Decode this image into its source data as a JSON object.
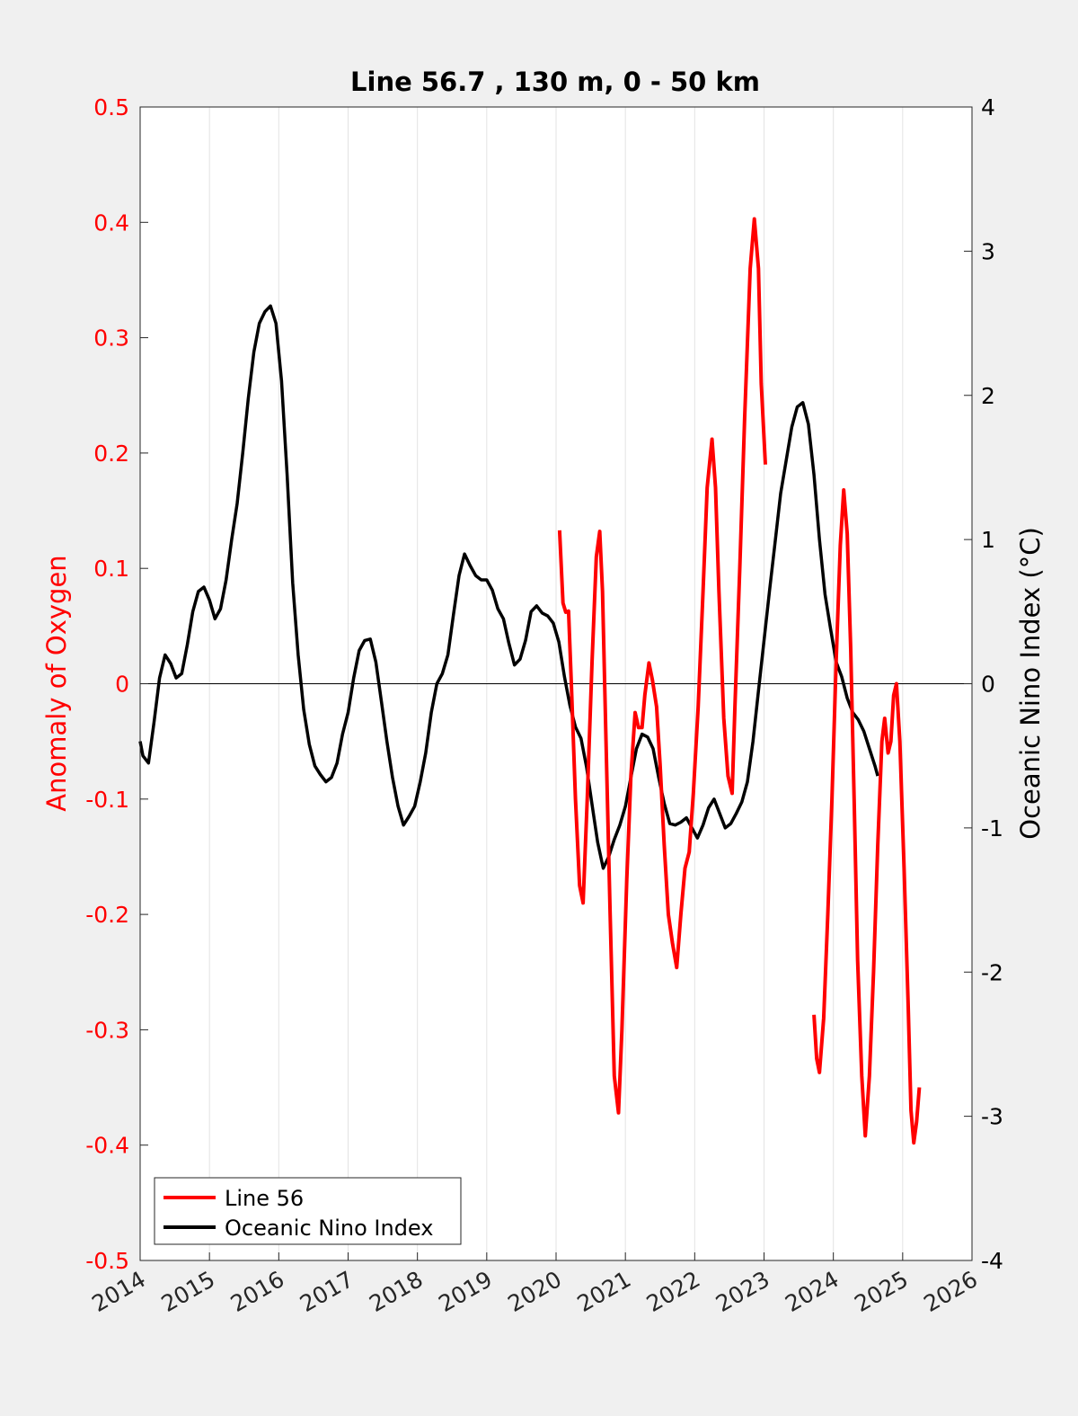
{
  "chart_data": {
    "type": "line",
    "title": "Line 56.7 , 130 m, 0 - 50 km",
    "xlabel": "",
    "ylabel_left": "Anomaly of Oxygen",
    "ylabel_right": "Oceanic Nino Index (°C)",
    "xlim": [
      2014,
      2026
    ],
    "ylim_left": [
      -0.5,
      0.5
    ],
    "ylim_right": [
      -4,
      4
    ],
    "x_ticks": [
      2014,
      2015,
      2016,
      2017,
      2018,
      2019,
      2020,
      2021,
      2022,
      2023,
      2024,
      2025,
      2026
    ],
    "y_ticks_left": [
      "-0.5",
      "-0.4",
      "-0.3",
      "-0.2",
      "-0.1",
      "0",
      "0.1",
      "0.2",
      "0.3",
      "0.4",
      "0.5"
    ],
    "y_ticks_right": [
      "-4",
      "-3",
      "-2",
      "-1",
      "0",
      "1",
      "2",
      "3",
      "4"
    ],
    "grid": "vertical",
    "legend_position": "bottom-left",
    "colors": {
      "line56": "#ff0000",
      "oni": "#000000",
      "left_axis": "#ff0000",
      "right_axis": "#000000"
    },
    "series": [
      {
        "name": "Line 56",
        "axis": "left",
        "segments": [
          [
            [
              2020.05,
              0.133
            ],
            [
              2020.1,
              0.07
            ],
            [
              2020.14,
              0.062
            ],
            [
              2020.18,
              0.063
            ],
            [
              2020.22,
              0.0
            ],
            [
              2020.28,
              -0.1
            ],
            [
              2020.34,
              -0.175
            ],
            [
              2020.39,
              -0.19
            ],
            [
              2020.45,
              -0.1
            ],
            [
              2020.52,
              0.02
            ],
            [
              2020.58,
              0.11
            ],
            [
              2020.63,
              0.132
            ],
            [
              2020.67,
              0.08
            ],
            [
              2020.72,
              -0.05
            ],
            [
              2020.78,
              -0.2
            ],
            [
              2020.84,
              -0.34
            ],
            [
              2020.9,
              -0.372
            ],
            [
              2020.95,
              -0.3
            ],
            [
              2021.02,
              -0.17
            ],
            [
              2021.08,
              -0.08
            ],
            [
              2021.14,
              -0.025
            ],
            [
              2021.19,
              -0.038
            ],
            [
              2021.24,
              -0.038
            ],
            [
              2021.28,
              -0.01
            ],
            [
              2021.34,
              0.018
            ],
            [
              2021.39,
              0.003
            ],
            [
              2021.45,
              -0.02
            ],
            [
              2021.5,
              -0.07
            ],
            [
              2021.56,
              -0.14
            ],
            [
              2021.62,
              -0.2
            ],
            [
              2021.68,
              -0.225
            ],
            [
              2021.74,
              -0.246
            ],
            [
              2021.8,
              -0.2
            ],
            [
              2021.86,
              -0.16
            ],
            [
              2021.92,
              -0.146
            ],
            [
              2021.98,
              -0.095
            ],
            [
              2022.05,
              -0.02
            ],
            [
              2022.12,
              0.08
            ],
            [
              2022.18,
              0.17
            ],
            [
              2022.25,
              0.212
            ],
            [
              2022.3,
              0.17
            ],
            [
              2022.35,
              0.08
            ],
            [
              2022.42,
              -0.03
            ],
            [
              2022.48,
              -0.08
            ],
            [
              2022.54,
              -0.095
            ],
            [
              2022.58,
              -0.02
            ],
            [
              2022.65,
              0.1
            ],
            [
              2022.72,
              0.23
            ],
            [
              2022.8,
              0.36
            ],
            [
              2022.86,
              0.403
            ],
            [
              2022.92,
              0.36
            ],
            [
              2022.96,
              0.26
            ],
            [
              2023.02,
              0.19
            ]
          ],
          [
            [
              2023.72,
              -0.287
            ],
            [
              2023.76,
              -0.325
            ],
            [
              2023.8,
              -0.337
            ],
            [
              2023.86,
              -0.29
            ],
            [
              2023.92,
              -0.2
            ],
            [
              2023.98,
              -0.1
            ],
            [
              2024.04,
              0.02
            ],
            [
              2024.1,
              0.12
            ],
            [
              2024.15,
              0.168
            ],
            [
              2024.2,
              0.13
            ],
            [
              2024.25,
              0.03
            ],
            [
              2024.3,
              -0.1
            ],
            [
              2024.35,
              -0.24
            ],
            [
              2024.41,
              -0.34
            ],
            [
              2024.46,
              -0.392
            ],
            [
              2024.52,
              -0.34
            ],
            [
              2024.58,
              -0.25
            ],
            [
              2024.64,
              -0.14
            ],
            [
              2024.7,
              -0.05
            ],
            [
              2024.74,
              -0.03
            ],
            [
              2024.79,
              -0.06
            ],
            [
              2024.83,
              -0.05
            ],
            [
              2024.87,
              -0.01
            ],
            [
              2024.91,
              0.0
            ],
            [
              2024.96,
              -0.05
            ],
            [
              2025.02,
              -0.16
            ],
            [
              2025.08,
              -0.28
            ],
            [
              2025.12,
              -0.37
            ],
            [
              2025.16,
              -0.398
            ],
            [
              2025.2,
              -0.38
            ],
            [
              2025.24,
              -0.35
            ]
          ]
        ]
      },
      {
        "name": "Oceanic Nino Index",
        "axis": "right",
        "points": [
          [
            2014.0,
            -0.4
          ],
          [
            2014.04,
            -0.5
          ],
          [
            2014.12,
            -0.55
          ],
          [
            2014.2,
            -0.27
          ],
          [
            2014.28,
            0.04
          ],
          [
            2014.36,
            0.2
          ],
          [
            2014.44,
            0.14
          ],
          [
            2014.52,
            0.04
          ],
          [
            2014.6,
            0.07
          ],
          [
            2014.68,
            0.27
          ],
          [
            2014.76,
            0.5
          ],
          [
            2014.84,
            0.64
          ],
          [
            2014.92,
            0.67
          ],
          [
            2015.0,
            0.58
          ],
          [
            2015.08,
            0.45
          ],
          [
            2015.16,
            0.52
          ],
          [
            2015.24,
            0.72
          ],
          [
            2015.32,
            1.0
          ],
          [
            2015.4,
            1.25
          ],
          [
            2015.48,
            1.6
          ],
          [
            2015.56,
            1.98
          ],
          [
            2015.64,
            2.3
          ],
          [
            2015.72,
            2.5
          ],
          [
            2015.8,
            2.58
          ],
          [
            2015.88,
            2.62
          ],
          [
            2015.96,
            2.5
          ],
          [
            2016.04,
            2.1
          ],
          [
            2016.12,
            1.45
          ],
          [
            2016.2,
            0.7
          ],
          [
            2016.28,
            0.2
          ],
          [
            2016.36,
            -0.18
          ],
          [
            2016.44,
            -0.42
          ],
          [
            2016.52,
            -0.57
          ],
          [
            2016.6,
            -0.63
          ],
          [
            2016.68,
            -0.68
          ],
          [
            2016.76,
            -0.65
          ],
          [
            2016.84,
            -0.55
          ],
          [
            2016.92,
            -0.35
          ],
          [
            2017.0,
            -0.2
          ],
          [
            2017.08,
            0.04
          ],
          [
            2017.16,
            0.23
          ],
          [
            2017.24,
            0.3
          ],
          [
            2017.32,
            0.31
          ],
          [
            2017.4,
            0.15
          ],
          [
            2017.48,
            -0.12
          ],
          [
            2017.56,
            -0.4
          ],
          [
            2017.64,
            -0.65
          ],
          [
            2017.72,
            -0.85
          ],
          [
            2017.8,
            -0.98
          ],
          [
            2017.88,
            -0.92
          ],
          [
            2017.96,
            -0.85
          ],
          [
            2018.04,
            -0.68
          ],
          [
            2018.12,
            -0.48
          ],
          [
            2018.2,
            -0.2
          ],
          [
            2018.28,
            0.0
          ],
          [
            2018.36,
            0.07
          ],
          [
            2018.44,
            0.2
          ],
          [
            2018.52,
            0.48
          ],
          [
            2018.6,
            0.75
          ],
          [
            2018.68,
            0.9
          ],
          [
            2018.76,
            0.82
          ],
          [
            2018.84,
            0.75
          ],
          [
            2018.92,
            0.72
          ],
          [
            2019.0,
            0.72
          ],
          [
            2019.08,
            0.65
          ],
          [
            2019.16,
            0.52
          ],
          [
            2019.24,
            0.45
          ],
          [
            2019.32,
            0.28
          ],
          [
            2019.4,
            0.13
          ],
          [
            2019.48,
            0.17
          ],
          [
            2019.56,
            0.3
          ],
          [
            2019.64,
            0.5
          ],
          [
            2019.72,
            0.54
          ],
          [
            2019.8,
            0.49
          ],
          [
            2019.88,
            0.47
          ],
          [
            2019.96,
            0.42
          ],
          [
            2020.04,
            0.29
          ],
          [
            2020.12,
            0.05
          ],
          [
            2020.2,
            -0.15
          ],
          [
            2020.28,
            -0.3
          ],
          [
            2020.36,
            -0.38
          ],
          [
            2020.44,
            -0.58
          ],
          [
            2020.52,
            -0.84
          ],
          [
            2020.6,
            -1.1
          ],
          [
            2020.68,
            -1.28
          ],
          [
            2020.76,
            -1.2
          ],
          [
            2020.84,
            -1.08
          ],
          [
            2020.92,
            -0.98
          ],
          [
            2021.0,
            -0.85
          ],
          [
            2021.08,
            -0.65
          ],
          [
            2021.16,
            -0.45
          ],
          [
            2021.24,
            -0.35
          ],
          [
            2021.32,
            -0.37
          ],
          [
            2021.4,
            -0.45
          ],
          [
            2021.48,
            -0.65
          ],
          [
            2021.56,
            -0.83
          ],
          [
            2021.64,
            -0.97
          ],
          [
            2021.72,
            -0.98
          ],
          [
            2021.8,
            -0.96
          ],
          [
            2021.88,
            -0.93
          ],
          [
            2021.96,
            -1.0
          ],
          [
            2022.04,
            -1.07
          ],
          [
            2022.12,
            -0.98
          ],
          [
            2022.2,
            -0.86
          ],
          [
            2022.28,
            -0.8
          ],
          [
            2022.36,
            -0.9
          ],
          [
            2022.44,
            -1.0
          ],
          [
            2022.52,
            -0.97
          ],
          [
            2022.6,
            -0.9
          ],
          [
            2022.68,
            -0.82
          ],
          [
            2022.76,
            -0.68
          ],
          [
            2022.84,
            -0.4
          ],
          [
            2022.92,
            -0.05
          ],
          [
            2023.0,
            0.3
          ],
          [
            2023.08,
            0.65
          ],
          [
            2023.16,
            0.98
          ],
          [
            2023.24,
            1.32
          ],
          [
            2023.32,
            1.55
          ],
          [
            2023.4,
            1.78
          ],
          [
            2023.48,
            1.92
          ],
          [
            2023.56,
            1.95
          ],
          [
            2023.64,
            1.8
          ],
          [
            2023.72,
            1.45
          ],
          [
            2023.8,
            1.0
          ],
          [
            2023.88,
            0.62
          ],
          [
            2023.96,
            0.38
          ],
          [
            2024.04,
            0.15
          ],
          [
            2024.12,
            0.05
          ],
          [
            2024.2,
            -0.1
          ],
          [
            2024.28,
            -0.2
          ],
          [
            2024.36,
            -0.25
          ],
          [
            2024.44,
            -0.33
          ],
          [
            2024.52,
            -0.45
          ],
          [
            2024.6,
            -0.57
          ],
          [
            2024.64,
            -0.64
          ]
        ]
      }
    ]
  }
}
